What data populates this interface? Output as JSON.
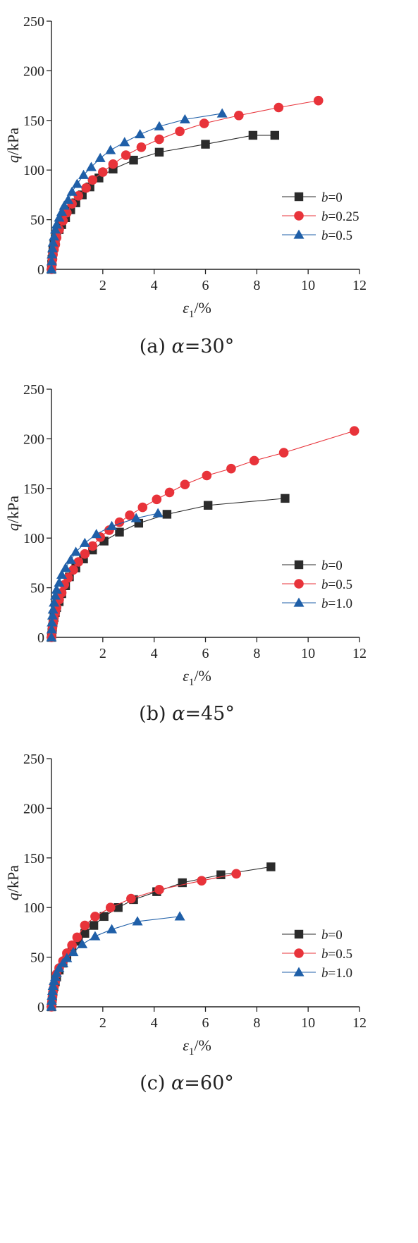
{
  "figure": {
    "captions": [
      "(a) α=30°",
      "(b) α=45°",
      "(c) α=60°"
    ],
    "colors": {
      "b_first": "#2b2b2b",
      "b_second": "#e8333a",
      "b_third": "#1f5fa8"
    }
  },
  "chart_data": [
    {
      "type": "line",
      "title": "",
      "xlabel": "ε1/%",
      "ylabel": "q/kPa",
      "xlim": [
        0,
        12
      ],
      "ylim": [
        0,
        250
      ],
      "xticks": [
        2,
        4,
        6,
        8,
        10,
        12
      ],
      "yticks": [
        0,
        50,
        100,
        150,
        200,
        250
      ],
      "legend_position": "right",
      "series": [
        {
          "name": "b=0",
          "marker": "square",
          "color": "#2b2b2b",
          "x": [
            0.0,
            0.01,
            0.02,
            0.04,
            0.06,
            0.1,
            0.15,
            0.2,
            0.3,
            0.4,
            0.55,
            0.75,
            0.95,
            1.2,
            1.5,
            1.85,
            2.4,
            3.2,
            4.2,
            6.0,
            7.85,
            8.7
          ],
          "y": [
            0,
            5,
            10,
            15,
            20,
            25,
            30,
            35,
            40,
            45,
            52,
            60,
            67,
            75,
            83,
            92,
            101,
            110,
            118,
            126,
            135,
            135
          ]
        },
        {
          "name": "b=0.25",
          "marker": "circle",
          "color": "#e8333a",
          "x": [
            0.0,
            0.02,
            0.04,
            0.06,
            0.1,
            0.15,
            0.2,
            0.3,
            0.45,
            0.6,
            0.8,
            1.05,
            1.35,
            1.6,
            2.0,
            2.4,
            2.9,
            3.5,
            4.2,
            5.0,
            5.95,
            7.3,
            8.85,
            10.4
          ],
          "y": [
            0,
            5,
            10,
            15,
            20,
            25,
            32,
            40,
            49,
            57,
            66,
            74,
            82,
            90,
            98,
            106,
            115,
            123,
            131,
            139,
            147,
            155,
            163,
            170
          ]
        },
        {
          "name": "b=0.5",
          "marker": "triangle",
          "color": "#1f5fa8",
          "x": [
            0.0,
            0.01,
            0.02,
            0.04,
            0.06,
            0.1,
            0.15,
            0.2,
            0.3,
            0.4,
            0.5,
            0.65,
            0.8,
            1.0,
            1.25,
            1.55,
            1.9,
            2.3,
            2.85,
            3.45,
            4.2,
            5.2,
            6.65
          ],
          "y": [
            0,
            8,
            15,
            21,
            27,
            33,
            40,
            45,
            52,
            58,
            64,
            70,
            78,
            86,
            95,
            103,
            112,
            120,
            128,
            136,
            144,
            151,
            157
          ]
        }
      ]
    },
    {
      "type": "line",
      "title": "",
      "xlabel": "ε1/%",
      "ylabel": "q/kPa",
      "xlim": [
        0,
        12
      ],
      "ylim": [
        0,
        250
      ],
      "xticks": [
        2,
        4,
        6,
        8,
        10,
        12
      ],
      "yticks": [
        0,
        50,
        100,
        150,
        200,
        250
      ],
      "legend_position": "right",
      "series": [
        {
          "name": "b=0",
          "marker": "square",
          "color": "#2b2b2b",
          "x": [
            0.0,
            0.02,
            0.04,
            0.06,
            0.1,
            0.15,
            0.2,
            0.3,
            0.4,
            0.55,
            0.7,
            0.95,
            1.25,
            1.6,
            2.05,
            2.65,
            3.4,
            4.5,
            6.1,
            9.1
          ],
          "y": [
            0,
            5,
            10,
            15,
            20,
            25,
            30,
            36,
            44,
            52,
            61,
            70,
            79,
            88,
            97,
            106,
            115,
            124,
            133,
            140
          ]
        },
        {
          "name": "b=0.5",
          "marker": "circle",
          "color": "#e8333a",
          "x": [
            0.0,
            0.02,
            0.04,
            0.07,
            0.1,
            0.15,
            0.2,
            0.3,
            0.4,
            0.5,
            0.65,
            0.85,
            1.05,
            1.3,
            1.6,
            1.9,
            2.25,
            2.65,
            3.05,
            3.55,
            4.1,
            4.6,
            5.2,
            6.05,
            7.0,
            7.9,
            9.05,
            11.8
          ],
          "y": [
            0,
            5,
            10,
            15,
            20,
            25,
            30,
            38,
            45,
            53,
            60,
            68,
            76,
            84,
            92,
            101,
            108,
            116,
            123,
            131,
            139,
            146,
            154,
            163,
            170,
            178,
            186,
            208
          ]
        },
        {
          "name": "b=1.0",
          "marker": "triangle",
          "color": "#1f5fa8",
          "x": [
            0.0,
            0.01,
            0.02,
            0.04,
            0.06,
            0.1,
            0.15,
            0.2,
            0.3,
            0.4,
            0.55,
            0.75,
            0.95,
            1.3,
            1.75,
            2.35,
            3.3,
            4.15
          ],
          "y": [
            0,
            8,
            15,
            22,
            28,
            35,
            42,
            48,
            55,
            63,
            70,
            78,
            86,
            95,
            104,
            112,
            120,
            125
          ]
        }
      ]
    },
    {
      "type": "line",
      "title": "",
      "xlabel": "ε1/%",
      "ylabel": "q/kPa",
      "xlim": [
        0,
        12
      ],
      "ylim": [
        0,
        250
      ],
      "xticks": [
        2,
        4,
        6,
        8,
        10,
        12
      ],
      "yticks": [
        0,
        50,
        100,
        150,
        200,
        250
      ],
      "legend_position": "right",
      "series": [
        {
          "name": "b=0",
          "marker": "square",
          "color": "#2b2b2b",
          "x": [
            0.0,
            0.02,
            0.04,
            0.06,
            0.1,
            0.15,
            0.2,
            0.3,
            0.45,
            0.6,
            0.8,
            1.05,
            1.3,
            1.65,
            2.05,
            2.6,
            3.2,
            4.1,
            5.1,
            6.6,
            8.55
          ],
          "y": [
            0,
            5,
            10,
            15,
            20,
            25,
            30,
            37,
            44,
            51,
            58,
            66,
            74,
            82,
            91,
            100,
            108,
            116,
            125,
            133,
            141
          ]
        },
        {
          "name": "b=0.5",
          "marker": "circle",
          "color": "#e8333a",
          "x": [
            0.0,
            0.02,
            0.04,
            0.06,
            0.1,
            0.15,
            0.2,
            0.3,
            0.45,
            0.6,
            0.8,
            1.0,
            1.3,
            1.7,
            2.3,
            3.1,
            4.2,
            5.85,
            7.2
          ],
          "y": [
            0,
            5,
            10,
            15,
            20,
            26,
            33,
            39,
            46,
            54,
            62,
            70,
            82,
            91,
            100,
            109,
            118,
            127,
            134
          ]
        },
        {
          "name": "b=1.0",
          "marker": "triangle",
          "color": "#1f5fa8",
          "x": [
            0.0,
            0.01,
            0.02,
            0.04,
            0.06,
            0.1,
            0.15,
            0.2,
            0.3,
            0.45,
            0.6,
            0.85,
            1.2,
            1.7,
            2.35,
            3.35,
            5.0
          ],
          "y": [
            0,
            6,
            11,
            16,
            21,
            26,
            30,
            34,
            39,
            44,
            49,
            55,
            63,
            71,
            78,
            86,
            91
          ]
        }
      ]
    }
  ]
}
